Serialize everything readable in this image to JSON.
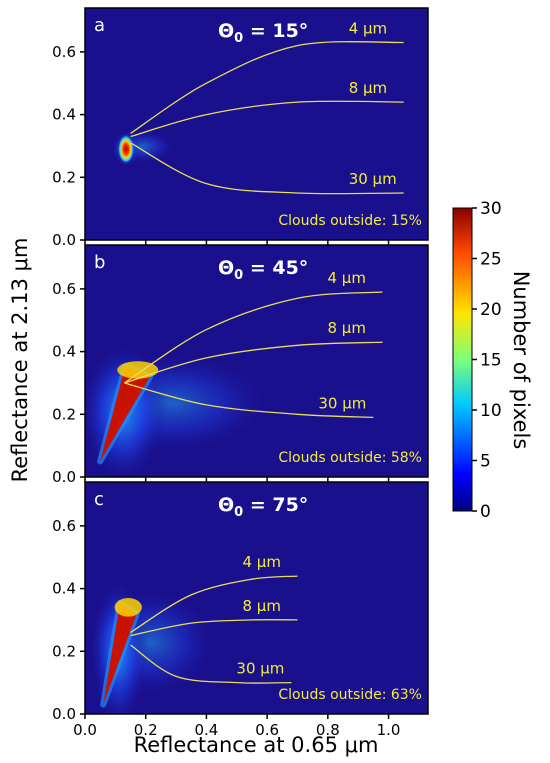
{
  "figure": {
    "ylabel": "Reflectance at 2.13 μm",
    "xlabel": "Reflectance at 0.65 μm",
    "colorbar": {
      "label": "Number of pixels",
      "min": 0,
      "max": 30,
      "ticks": [
        "0",
        "5",
        "10",
        "15",
        "20",
        "25",
        "30"
      ],
      "colormap": "jet"
    }
  },
  "chart_data": [
    {
      "type": "heatmap",
      "panel_letter": "a",
      "title_symbol": "Θ",
      "title_subscript": "0",
      "title_value": " = 15°",
      "clouds_outside": "Clouds outside: 15%",
      "xlim": [
        0,
        1.13
      ],
      "ylim": [
        0,
        0.74
      ],
      "yticks": [
        "0.0",
        "0.2",
        "0.4",
        "0.6"
      ],
      "density_core": {
        "x": [
          0.11,
          0.16
        ],
        "y": [
          0.25,
          0.33
        ]
      },
      "series": [
        {
          "name": "4 μm",
          "x": [
            0.15,
            0.4,
            0.7,
            1.05
          ],
          "y": [
            0.34,
            0.5,
            0.62,
            0.63
          ]
        },
        {
          "name": "8 μm",
          "x": [
            0.15,
            0.4,
            0.7,
            1.05
          ],
          "y": [
            0.33,
            0.4,
            0.44,
            0.44
          ]
        },
        {
          "name": "30 μm",
          "x": [
            0.15,
            0.4,
            0.7,
            1.05
          ],
          "y": [
            0.31,
            0.18,
            0.15,
            0.15
          ]
        }
      ]
    },
    {
      "type": "heatmap",
      "panel_letter": "b",
      "title_symbol": "Θ",
      "title_subscript": "0",
      "title_value": " = 45°",
      "clouds_outside": "Clouds outside: 58%",
      "xlim": [
        0,
        1.13
      ],
      "ylim": [
        0,
        0.74
      ],
      "yticks": [
        "0.0",
        "0.2",
        "0.4",
        "0.6"
      ],
      "density_core": {
        "x": [
          0.05,
          0.2
        ],
        "y": [
          0.05,
          0.36
        ]
      },
      "series": [
        {
          "name": "4 μm",
          "x": [
            0.13,
            0.4,
            0.7,
            0.98
          ],
          "y": [
            0.3,
            0.47,
            0.57,
            0.59
          ]
        },
        {
          "name": "8 μm",
          "x": [
            0.13,
            0.4,
            0.7,
            0.98
          ],
          "y": [
            0.3,
            0.38,
            0.42,
            0.43
          ]
        },
        {
          "name": "30 μm",
          "x": [
            0.13,
            0.4,
            0.7,
            0.95
          ],
          "y": [
            0.3,
            0.23,
            0.2,
            0.19
          ]
        }
      ]
    },
    {
      "type": "heatmap",
      "panel_letter": "c",
      "title_symbol": "Θ",
      "title_subscript": "0",
      "title_value": " = 75°",
      "clouds_outside": "Clouds outside: 63%",
      "xlim": [
        0,
        1.13
      ],
      "ylim": [
        0,
        0.74
      ],
      "xticks": [
        "0.0",
        "0.2",
        "0.4",
        "0.6",
        "0.8",
        "1.0"
      ],
      "yticks": [
        "0.0",
        "0.2",
        "0.4",
        "0.6"
      ],
      "density_core": {
        "x": [
          0.06,
          0.16
        ],
        "y": [
          0.03,
          0.36
        ]
      },
      "series": [
        {
          "name": "4 μm",
          "x": [
            0.15,
            0.35,
            0.55,
            0.7
          ],
          "y": [
            0.26,
            0.38,
            0.43,
            0.44
          ]
        },
        {
          "name": "8 μm",
          "x": [
            0.15,
            0.35,
            0.55,
            0.7
          ],
          "y": [
            0.25,
            0.29,
            0.3,
            0.3
          ]
        },
        {
          "name": "30 μm",
          "x": [
            0.15,
            0.3,
            0.5,
            0.68
          ],
          "y": [
            0.22,
            0.12,
            0.1,
            0.1
          ]
        }
      ]
    }
  ],
  "colors": {
    "background": "#1a0f8c",
    "curve": "#e7df5a",
    "label": "#f2ee3a",
    "panel_text": "#ffffff"
  }
}
